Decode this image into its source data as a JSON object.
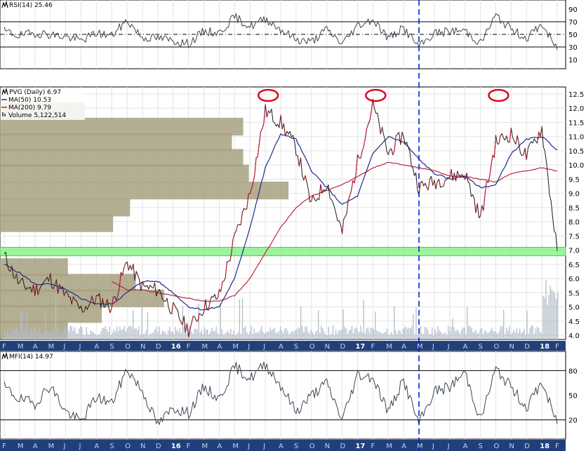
{
  "colors": {
    "panel_bg": "#ffffff",
    "grid": "#e3e3e3",
    "axis_strip": "#21407a",
    "axis_strip_text": "#c7d0e4",
    "price_line": "#1a1a1a",
    "price_up": "#c8102e",
    "ma50": "#1f2a86",
    "ma200": "#c0243b",
    "volume": "#b3bcc9",
    "volume_by_price": "#a7a180",
    "support_band": "#7cf07c",
    "indicator_line": "#3a4654",
    "indicator_fill": "#8a8056",
    "highlight": "#d9061f",
    "vline": "#0b1fd6"
  },
  "rsi_panel": {
    "label": "RSI(14) 25.46",
    "icon": "panel-icon",
    "yticks": [
      "90",
      "70",
      "50",
      "30",
      "10"
    ],
    "levels": [
      70,
      50,
      30
    ]
  },
  "price_panel": {
    "title": "PVG (Daily) 6.97",
    "legend": [
      {
        "label": "MA(50) 10.53",
        "color": "#1f2a86"
      },
      {
        "label": "MA(200) 9.79",
        "color": "#c0243b"
      },
      {
        "label": "Volume 5,122,514",
        "color": "#55607a"
      }
    ],
    "yticks": [
      "12.5",
      "12.0",
      "11.5",
      "11.0",
      "10.5",
      "10.0",
      "9.5",
      "9.0",
      "8.5",
      "8.0",
      "7.5",
      "7.0",
      "6.5",
      "6.0",
      "5.5",
      "5.0",
      "4.5",
      "4.0"
    ],
    "support_level": [
      6.8,
      7.1
    ],
    "highlight_circles": [
      "2016-07",
      "2017-02",
      "2017-10"
    ],
    "vertical_marker": "2017-05"
  },
  "mfi_panel": {
    "label": "MFI(14) 14.97",
    "yticks": [
      "80",
      "50",
      "20"
    ],
    "levels": [
      80,
      20
    ]
  },
  "time_axis": {
    "labels": [
      "F",
      "M",
      "A",
      "M",
      "J",
      "J",
      "A",
      "S",
      "O",
      "N",
      "D",
      "16",
      "F",
      "M",
      "A",
      "M",
      "J",
      "J",
      "A",
      "S",
      "O",
      "N",
      "D",
      "17",
      "F",
      "M",
      "A",
      "M",
      "J",
      "J",
      "A",
      "S",
      "O",
      "N",
      "D",
      "18",
      "F"
    ],
    "bold": [
      "16",
      "17",
      "18"
    ]
  },
  "chart_data": {
    "type": "line",
    "title": "PVG (Daily) 6.97",
    "x_range": [
      "2015-02",
      "2018-02"
    ],
    "ylim": [
      4.0,
      12.5
    ],
    "price_series": {
      "name": "PVG",
      "x": [
        "2015-02",
        "2015-03",
        "2015-04",
        "2015-05",
        "2015-06",
        "2015-07",
        "2015-08",
        "2015-09",
        "2015-10",
        "2015-11",
        "2015-12",
        "2016-01",
        "2016-02",
        "2016-03",
        "2016-04",
        "2016-05",
        "2016-06",
        "2016-07",
        "2016-08",
        "2016-09",
        "2016-10",
        "2016-11",
        "2016-12",
        "2017-01",
        "2017-02",
        "2017-03",
        "2017-04",
        "2017-05",
        "2017-06",
        "2017-07",
        "2017-08",
        "2017-09",
        "2017-10",
        "2017-11",
        "2017-12",
        "2018-01",
        "2018-02"
      ],
      "values": [
        6.8,
        5.8,
        5.6,
        6.0,
        5.4,
        4.9,
        5.3,
        5.0,
        6.6,
        5.7,
        5.6,
        4.9,
        4.2,
        5.0,
        5.4,
        7.4,
        9.0,
        11.9,
        11.5,
        10.6,
        8.6,
        9.4,
        7.6,
        10.1,
        12.1,
        10.4,
        11.1,
        9.2,
        9.4,
        9.6,
        9.7,
        8.1,
        10.8,
        11.1,
        10.3,
        11.3,
        6.97
      ]
    },
    "ma50": {
      "name": "MA(50) 10.53",
      "values": [
        6.5,
        6.2,
        5.8,
        5.8,
        5.6,
        5.3,
        5.1,
        5.1,
        5.5,
        5.9,
        5.9,
        5.5,
        5.0,
        4.9,
        5.0,
        6.0,
        7.8,
        9.9,
        11.1,
        10.9,
        9.8,
        9.2,
        8.6,
        8.9,
        10.4,
        11.0,
        10.8,
        10.2,
        9.7,
        9.5,
        9.6,
        9.2,
        9.3,
        10.4,
        10.9,
        11.0,
        10.53
      ]
    },
    "ma200": {
      "name": "MA(200) 9.79",
      "values": [
        null,
        null,
        null,
        null,
        null,
        null,
        null,
        5.9,
        5.6,
        5.6,
        5.5,
        5.4,
        5.3,
        5.2,
        5.2,
        5.4,
        6.0,
        6.9,
        7.8,
        8.5,
        8.9,
        9.1,
        9.3,
        9.6,
        9.9,
        10.1,
        10.0,
        9.9,
        9.8,
        9.6,
        9.6,
        9.5,
        9.4,
        9.7,
        9.8,
        9.9,
        9.79
      ]
    },
    "volume_by_price": [
      {
        "price": 11.9,
        "length": 0.15
      },
      {
        "price": 11.35,
        "length": 0.43
      },
      {
        "price": 10.8,
        "length": 0.41
      },
      {
        "price": 10.25,
        "length": 0.43
      },
      {
        "price": 9.7,
        "length": 0.44
      },
      {
        "price": 9.1,
        "length": 0.51
      },
      {
        "price": 8.5,
        "length": 0.23
      },
      {
        "price": 7.95,
        "length": 0.2
      },
      {
        "price": 6.4,
        "length": 0.12
      },
      {
        "price": 5.85,
        "length": 0.24
      },
      {
        "price": 5.3,
        "length": 0.29
      },
      {
        "price": 4.75,
        "length": 0.18
      },
      {
        "price": 4.2,
        "length": 0.12
      }
    ],
    "rsi": {
      "name": "RSI(14) 25.46",
      "ylim": [
        0,
        100
      ],
      "values": [
        55,
        48,
        52,
        50,
        46,
        40,
        52,
        48,
        72,
        45,
        44,
        40,
        35,
        55,
        52,
        78,
        62,
        75,
        58,
        42,
        38,
        58,
        35,
        64,
        74,
        44,
        60,
        30,
        52,
        55,
        56,
        36,
        80,
        58,
        44,
        66,
        25.46
      ]
    },
    "mfi": {
      "name": "MFI(14) 14.97",
      "ylim": [
        0,
        100
      ],
      "values": [
        60,
        45,
        40,
        62,
        30,
        18,
        48,
        40,
        82,
        55,
        14,
        35,
        28,
        60,
        45,
        85,
        70,
        88,
        62,
        30,
        50,
        65,
        20,
        75,
        72,
        30,
        68,
        15,
        55,
        60,
        78,
        20,
        82,
        60,
        35,
        66,
        14.97
      ]
    }
  }
}
